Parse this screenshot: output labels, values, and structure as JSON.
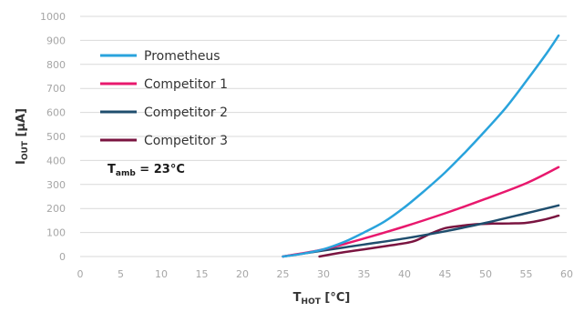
{
  "chart_data": {
    "type": "line",
    "title": "",
    "xlabel": {
      "main": "T",
      "sub": "HOT",
      "unit": " [°C]"
    },
    "ylabel": {
      "main": "I",
      "sub": "OUT",
      "unit": " [µA]"
    },
    "xlim": [
      0,
      60
    ],
    "ylim": [
      0,
      1000
    ],
    "x_ticks": [
      0,
      5,
      10,
      15,
      20,
      25,
      30,
      35,
      40,
      45,
      50,
      55,
      60
    ],
    "y_ticks": [
      0,
      100,
      200,
      300,
      400,
      500,
      600,
      700,
      800,
      900,
      1000
    ],
    "grid": "horizontal",
    "legend_position": "top-left",
    "annotation": {
      "main": "T",
      "sub": "amb",
      "rest": " = 23°C"
    },
    "series": [
      {
        "name": "Prometheus",
        "color": "#29a3dc",
        "x": [
          25,
          27.5,
          30,
          32.5,
          35,
          37.5,
          40,
          42.5,
          45,
          47.5,
          50,
          52.5,
          55,
          57.5,
          59
        ],
        "y": [
          0,
          12,
          30,
          60,
          100,
          145,
          205,
          275,
          350,
          435,
          525,
          620,
          730,
          845,
          920
        ]
      },
      {
        "name": "Competitor 1",
        "color": "#e8186d",
        "x": [
          25,
          30,
          35,
          40,
          45,
          50,
          55,
          59
        ],
        "y": [
          0,
          30,
          75,
          125,
          180,
          240,
          305,
          372
        ]
      },
      {
        "name": "Competitor 2",
        "color": "#1f4e6e",
        "x": [
          25,
          30,
          35,
          40,
          45,
          50,
          55,
          59
        ],
        "y": [
          0,
          25,
          50,
          75,
          105,
          140,
          180,
          213
        ]
      },
      {
        "name": "Competitor 3",
        "color": "#7a1440",
        "x": [
          29.5,
          32,
          35,
          38,
          41,
          43,
          45,
          47,
          49,
          51,
          53,
          55,
          57,
          59
        ],
        "y": [
          0,
          15,
          30,
          45,
          62,
          92,
          118,
          128,
          135,
          137,
          138,
          140,
          152,
          170
        ]
      }
    ]
  }
}
